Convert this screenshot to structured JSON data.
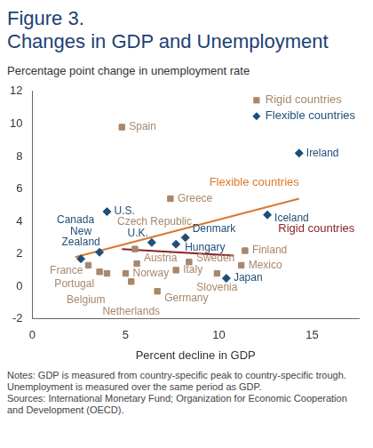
{
  "chart_data": {
    "type": "scatter",
    "title": "Figure 3.",
    "subtitle": "Changes in GDP and Unemployment",
    "y_label": "Percentage point change in unemployment rate",
    "x_label": "Percent decline in GDP",
    "xlim": [
      0,
      17.5
    ],
    "xticks": [
      0,
      5,
      10,
      15
    ],
    "ylim": [
      -2,
      12
    ],
    "yticks": [
      -2,
      0,
      2,
      4,
      6,
      8,
      10,
      12
    ],
    "grid": false,
    "legend": "top right",
    "series": [
      {
        "name": "Rigid countries",
        "color": "#a8876b",
        "marker": "square",
        "values": [
          {
            "label": "Spain",
            "x": 4.8,
            "y": 9.8
          },
          {
            "label": "Greece",
            "x": 7.4,
            "y": 5.4
          },
          {
            "label": "Czech Republic",
            "x": 5.5,
            "y": 2.3
          },
          {
            "label": "France",
            "x": 3.0,
            "y": 1.3
          },
          {
            "label": "Portugal",
            "x": 3.6,
            "y": 0.9
          },
          {
            "label": "Belgium",
            "x": 4.0,
            "y": 0.8
          },
          {
            "label": "Austria",
            "x": 5.6,
            "y": 1.4
          },
          {
            "label": "Norway",
            "x": 5.0,
            "y": 0.8
          },
          {
            "label": "Netherlands",
            "x": 5.3,
            "y": 0.3
          },
          {
            "label": "Italy",
            "x": 7.7,
            "y": 1.0
          },
          {
            "label": "Germany",
            "x": 6.7,
            "y": -0.3
          },
          {
            "label": "Sweden",
            "x": 8.4,
            "y": 1.5
          },
          {
            "label": "Slovenia",
            "x": 9.9,
            "y": 0.8
          },
          {
            "label": "Finland",
            "x": 11.4,
            "y": 2.2
          },
          {
            "label": "Mexico",
            "x": 11.2,
            "y": 1.3
          }
        ]
      },
      {
        "name": "Flexible countries",
        "color": "#1f4e79",
        "marker": "diamond",
        "values": [
          {
            "label": "Ireland",
            "x": 14.3,
            "y": 8.2
          },
          {
            "label": "Iceland",
            "x": 12.6,
            "y": 4.4
          },
          {
            "label": "U.S.",
            "x": 4.0,
            "y": 4.6
          },
          {
            "label": "Canada",
            "x": 3.6,
            "y": 2.1
          },
          {
            "label": "New Zealand",
            "x": 2.6,
            "y": 1.7
          },
          {
            "label": "U.K.",
            "x": 6.4,
            "y": 2.7
          },
          {
            "label": "Hungary",
            "x": 7.7,
            "y": 2.6
          },
          {
            "label": "Denmark",
            "x": 8.2,
            "y": 3.0
          },
          {
            "label": "Japan",
            "x": 10.4,
            "y": 0.5
          }
        ]
      }
    ],
    "trend_lines": [
      {
        "name": "Flexible countries",
        "color": "#d9782d",
        "line_style": "solid",
        "x": [
          2.3,
          14.3
        ],
        "y": [
          1.8,
          5.4
        ]
      },
      {
        "name": "Rigid countries",
        "color": "#8b2323",
        "line_style": "solid",
        "x": [
          4.8,
          10.8
        ],
        "y": [
          2.3,
          1.9
        ]
      }
    ],
    "notes": [
      "Notes: GDP is measured from country-specific peak to country-specific trough. Unemployment is measured over the same period as GDP.",
      "Sources: International Monetary Fund; Organization for Economic Cooperation and Development (OECD)."
    ]
  }
}
